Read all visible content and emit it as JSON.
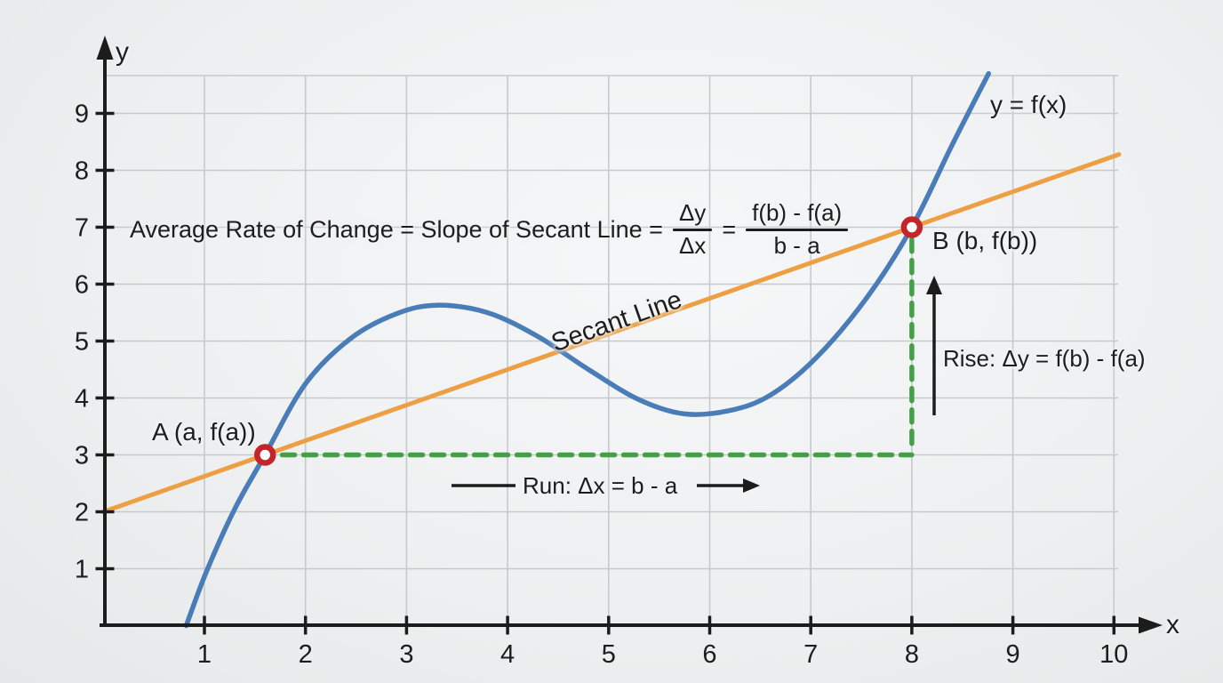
{
  "formula": {
    "lead": "Average Rate of Change = Slope of Secant Line =",
    "frac1": {
      "num": "Δy",
      "den": "Δx"
    },
    "equals": "=",
    "frac2": {
      "num": "f(b) - f(a)",
      "den": "b - a"
    }
  },
  "labels": {
    "x_axis": "x",
    "y_axis": "y",
    "curve": "y = f(x)",
    "secant": "Secant Line",
    "point_a": "A (a, f(a))",
    "point_b": "B (b, f(b))",
    "rise": "Rise: Δy = f(b) - f(a)",
    "run": "Run: Δx = b - a"
  },
  "colors": {
    "curve": "#4a7db8",
    "secant": "#eda043",
    "rise_run_dashes": "#43a047",
    "point_marker": "#c4252b",
    "axis": "#1c1c1c",
    "grid": "#c6cacd",
    "text": "#1d1d1d"
  },
  "chart_data": {
    "type": "line",
    "title": "Average Rate of Change = Slope of Secant Line = Δy/Δx = (f(b) - f(a)) / (b - a)",
    "xlabel": "x",
    "ylabel": "y",
    "xlim": [
      0,
      10.4
    ],
    "ylim": [
      0,
      10.1
    ],
    "x_ticks": [
      1,
      2,
      3,
      4,
      5,
      6,
      7,
      8,
      9,
      10
    ],
    "y_ticks": [
      1,
      2,
      3,
      4,
      5,
      6,
      7,
      8,
      9
    ],
    "grid": true,
    "legend_position": "none",
    "series": [
      {
        "name": "y = f(x)",
        "style": "smooth-curve",
        "color_key": "curve",
        "points": [
          [
            0.82,
            0
          ],
          [
            1.02,
            0.95
          ],
          [
            1.3,
            2.05
          ],
          [
            1.6,
            3.0
          ],
          [
            2.0,
            4.25
          ],
          [
            2.45,
            5.05
          ],
          [
            2.9,
            5.48
          ],
          [
            3.3,
            5.63
          ],
          [
            3.8,
            5.5
          ],
          [
            4.3,
            5.08
          ],
          [
            4.8,
            4.5
          ],
          [
            5.3,
            3.97
          ],
          [
            5.75,
            3.72
          ],
          [
            6.2,
            3.78
          ],
          [
            6.6,
            4.05
          ],
          [
            7.05,
            4.7
          ],
          [
            7.55,
            5.75
          ],
          [
            8.0,
            7.0
          ],
          [
            8.4,
            8.45
          ],
          [
            8.76,
            9.7
          ]
        ]
      },
      {
        "name": "Secant Line",
        "style": "straight",
        "color_key": "secant",
        "points": [
          [
            0,
            2.0
          ],
          [
            10.05,
            8.28
          ]
        ]
      }
    ],
    "key_points": [
      {
        "id": "A",
        "x": 1.6,
        "y": 3,
        "label": "A (a, f(a))"
      },
      {
        "id": "B",
        "x": 8,
        "y": 7,
        "label": "B (b, f(b))"
      }
    ],
    "rise_run": {
      "run_dash_horizontal": {
        "from": [
          1.77,
          3
        ],
        "to": [
          8,
          3
        ]
      },
      "rise_dash_vertical": {
        "from": [
          8,
          3.2
        ],
        "to": [
          8,
          6.78
        ]
      },
      "rise_value": "Δy = f(b) - f(a)",
      "run_value": "Δx = b - a"
    }
  }
}
